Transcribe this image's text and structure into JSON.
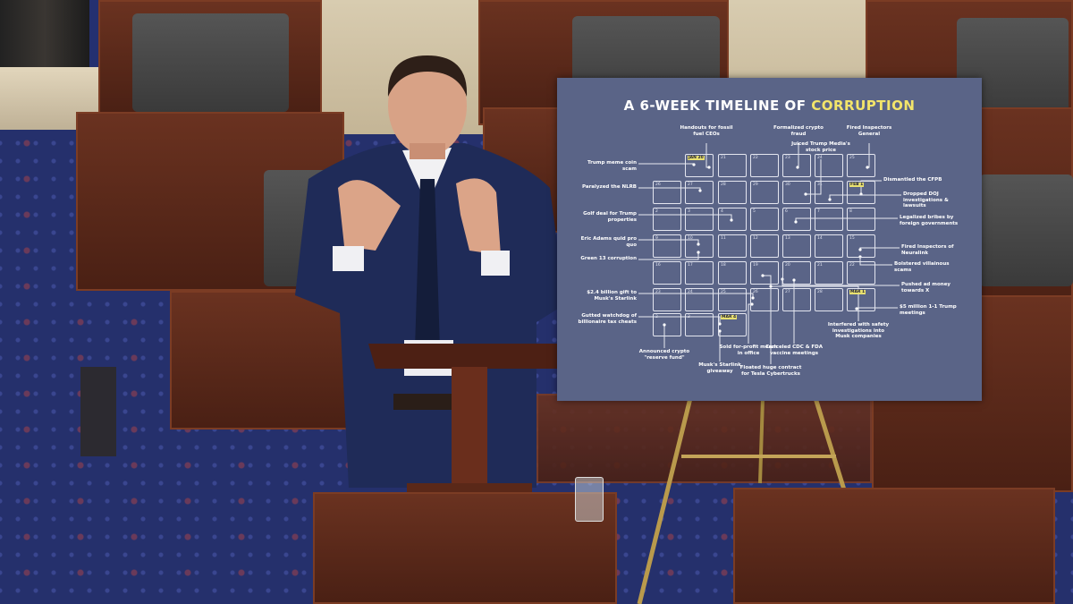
{
  "poster": {
    "title_prefix": "A 6-WEEK TIMELINE OF",
    "title_highlight": "CORRUPTION",
    "highlight_color": "#f3e56a",
    "background_color": "#5a6487",
    "calendar": [
      [
        null,
        "JAN 20",
        "21",
        "22",
        "23",
        "24",
        "25"
      ],
      [
        "26",
        "27",
        "28",
        "29",
        "30",
        "31",
        "FEB 1"
      ],
      [
        "2",
        "3",
        "4",
        "5",
        "6",
        "7",
        "8"
      ],
      [
        "9",
        "10",
        "11",
        "12",
        "13",
        "14",
        "15"
      ],
      [
        "16",
        "17",
        "18",
        "19",
        "20",
        "21",
        "22"
      ],
      [
        "23",
        "24",
        "25",
        "26",
        "27",
        "28",
        "MAR 1"
      ],
      [
        "2",
        "3",
        "MAR 4",
        null,
        null,
        null,
        null
      ]
    ],
    "annotations": [
      "Trump meme coin scam",
      "Paralyzed the NLRB",
      "Golf deal for Trump properties",
      "Eric Adams quid pro quo",
      "Green 13 corruption",
      "$2.4 billion gift to Musk's Starlink",
      "Gutted watchdog of billionaire tax cheats",
      "Announced crypto \"reserve fund\"",
      "Musk's Starlink giveaway",
      "Sold for-profit merch in office",
      "Floated huge contract for Tesla Cybertrucks",
      "Canceled CDC & FDA vaccine meetings",
      "Interfered with safety investigations into Musk companies",
      "Handouts for fossil fuel CEOs",
      "Formalized crypto fraud",
      "Juiced Trump Media's stock price",
      "Fired Inspectors General",
      "Dismantled the CFPB",
      "Dropped DOJ investigations & lawsuits",
      "Legalized bribes by foreign governments",
      "Fired Inspectors of Neuralink",
      "Bolstered villainous scams",
      "Pushed ad money towards X",
      "$5 million 1-1 Trump meetings"
    ]
  }
}
